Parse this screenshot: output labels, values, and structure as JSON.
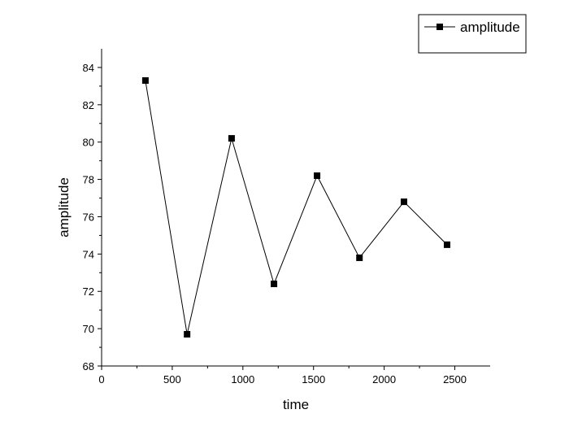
{
  "chart_data": {
    "type": "line",
    "title": "",
    "xlabel": "time",
    "ylabel": "amplitude",
    "xlim": [
      0,
      2750
    ],
    "ylim": [
      68,
      85
    ],
    "xticks": [
      0,
      500,
      1000,
      1500,
      2000,
      2500
    ],
    "yticks": [
      68,
      70,
      72,
      74,
      76,
      78,
      80,
      82,
      84
    ],
    "grid": false,
    "legend_position": "top-right",
    "series": [
      {
        "name": "amplitude",
        "marker": "square",
        "color": "#000000",
        "x": [
          310,
          605,
          920,
          1220,
          1525,
          1825,
          2140,
          2445
        ],
        "y": [
          83.3,
          69.7,
          80.2,
          72.4,
          78.2,
          73.8,
          76.8,
          74.5
        ]
      }
    ]
  }
}
